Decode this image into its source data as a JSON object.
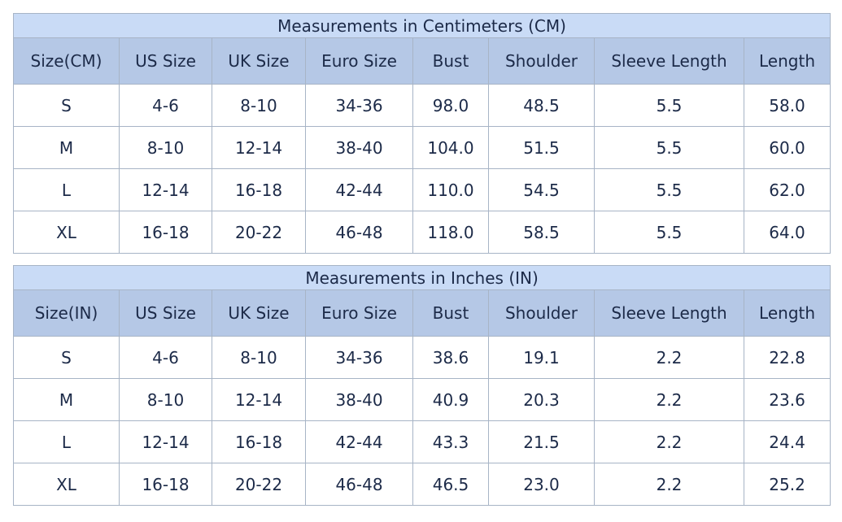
{
  "tables": [
    {
      "title": "Measurements in Centimeters (CM)",
      "header": [
        "Size(CM)",
        "US Size",
        "UK Size",
        "Euro Size",
        "Bust",
        "Shoulder",
        "Sleeve Length",
        "Length"
      ],
      "rows": [
        [
          "S",
          "4-6",
          "8-10",
          "34-36",
          "98.0",
          "48.5",
          "5.5",
          "58.0"
        ],
        [
          "M",
          "8-10",
          "12-14",
          "38-40",
          "104.0",
          "51.5",
          "5.5",
          "60.0"
        ],
        [
          "L",
          "12-14",
          "16-18",
          "42-44",
          "110.0",
          "54.5",
          "5.5",
          "62.0"
        ],
        [
          "XL",
          "16-18",
          "20-22",
          "46-48",
          "118.0",
          "58.5",
          "5.5",
          "64.0"
        ]
      ]
    },
    {
      "title": "Measurements in Inches (IN)",
      "header": [
        "Size(IN)",
        "US Size",
        "UK Size",
        "Euro Size",
        "Bust",
        "Shoulder",
        "Sleeve Length",
        "Length"
      ],
      "rows": [
        [
          "S",
          "4-6",
          "8-10",
          "34-36",
          "38.6",
          "19.1",
          "2.2",
          "22.8"
        ],
        [
          "M",
          "8-10",
          "12-14",
          "38-40",
          "40.9",
          "20.3",
          "2.2",
          "23.6"
        ],
        [
          "L",
          "12-14",
          "16-18",
          "42-44",
          "43.3",
          "21.5",
          "2.2",
          "24.4"
        ],
        [
          "XL",
          "16-18",
          "20-22",
          "46-48",
          "46.5",
          "23.0",
          "2.2",
          "25.2"
        ]
      ]
    }
  ]
}
